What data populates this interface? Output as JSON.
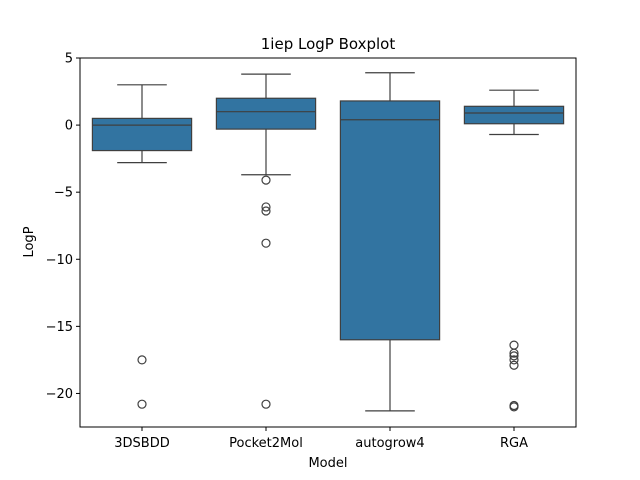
{
  "chart_data": {
    "type": "boxplot",
    "title": "1iep LogP Boxplot",
    "xlabel": "Model",
    "ylabel": "LogP",
    "ylim": [
      -22.5,
      5
    ],
    "yticks": [
      5,
      0,
      -5,
      -10,
      -15,
      -20
    ],
    "ytick_labels": [
      "5",
      "0",
      "−5",
      "−10",
      "−15",
      "−20"
    ],
    "grid": false,
    "box_color": "#3274a1",
    "categories": [
      "3DSBDD",
      "Pocket2Mol",
      "autogrow4",
      "RGA"
    ],
    "boxes": [
      {
        "category": "3DSBDD",
        "whisker_low": -2.8,
        "q1": -1.9,
        "median": 0.0,
        "q3": 0.5,
        "whisker_high": 3.0,
        "outliers": [
          -17.5,
          -20.8
        ]
      },
      {
        "category": "Pocket2Mol",
        "whisker_low": -3.7,
        "q1": -0.3,
        "median": 1.0,
        "q3": 2.0,
        "whisker_high": 3.8,
        "outliers": [
          -4.1,
          -6.1,
          -6.4,
          -8.8,
          -20.8
        ]
      },
      {
        "category": "autogrow4",
        "whisker_low": -21.3,
        "q1": -16.0,
        "median": 0.4,
        "q3": 1.8,
        "whisker_high": 3.9,
        "outliers": []
      },
      {
        "category": "RGA",
        "whisker_low": -0.7,
        "q1": 0.1,
        "median": 0.9,
        "q3": 1.4,
        "whisker_high": 2.6,
        "outliers": [
          -16.4,
          -17.0,
          -17.2,
          -17.5,
          -17.9,
          -20.9,
          -21.0
        ]
      }
    ]
  }
}
